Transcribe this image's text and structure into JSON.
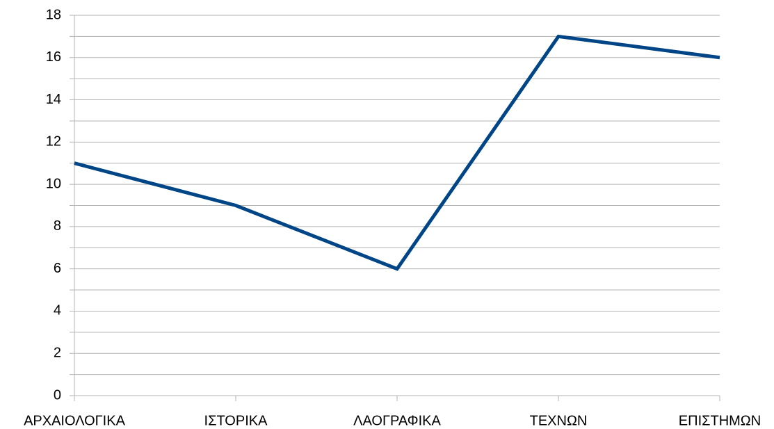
{
  "chart_data": {
    "type": "line",
    "categories": [
      "ΑΡΧΑΙΟΛΟΓΙΚΑ",
      "ΙΣΤΟΡΙΚΑ",
      "ΛΑΟΓΡΑΦΙΚΑ",
      "ΤΕΧΝΩΝ",
      "ΕΠΙΣΤΗΜΩΝ"
    ],
    "values": [
      11,
      9,
      6,
      17,
      16
    ],
    "color": "#004586",
    "ylim": [
      0,
      18
    ],
    "yticks": [
      0,
      2,
      4,
      6,
      8,
      10,
      12,
      14,
      16,
      18
    ],
    "minor_yticks": [
      1,
      3,
      5,
      7,
      9,
      11,
      13,
      15,
      17
    ],
    "grid": true
  }
}
